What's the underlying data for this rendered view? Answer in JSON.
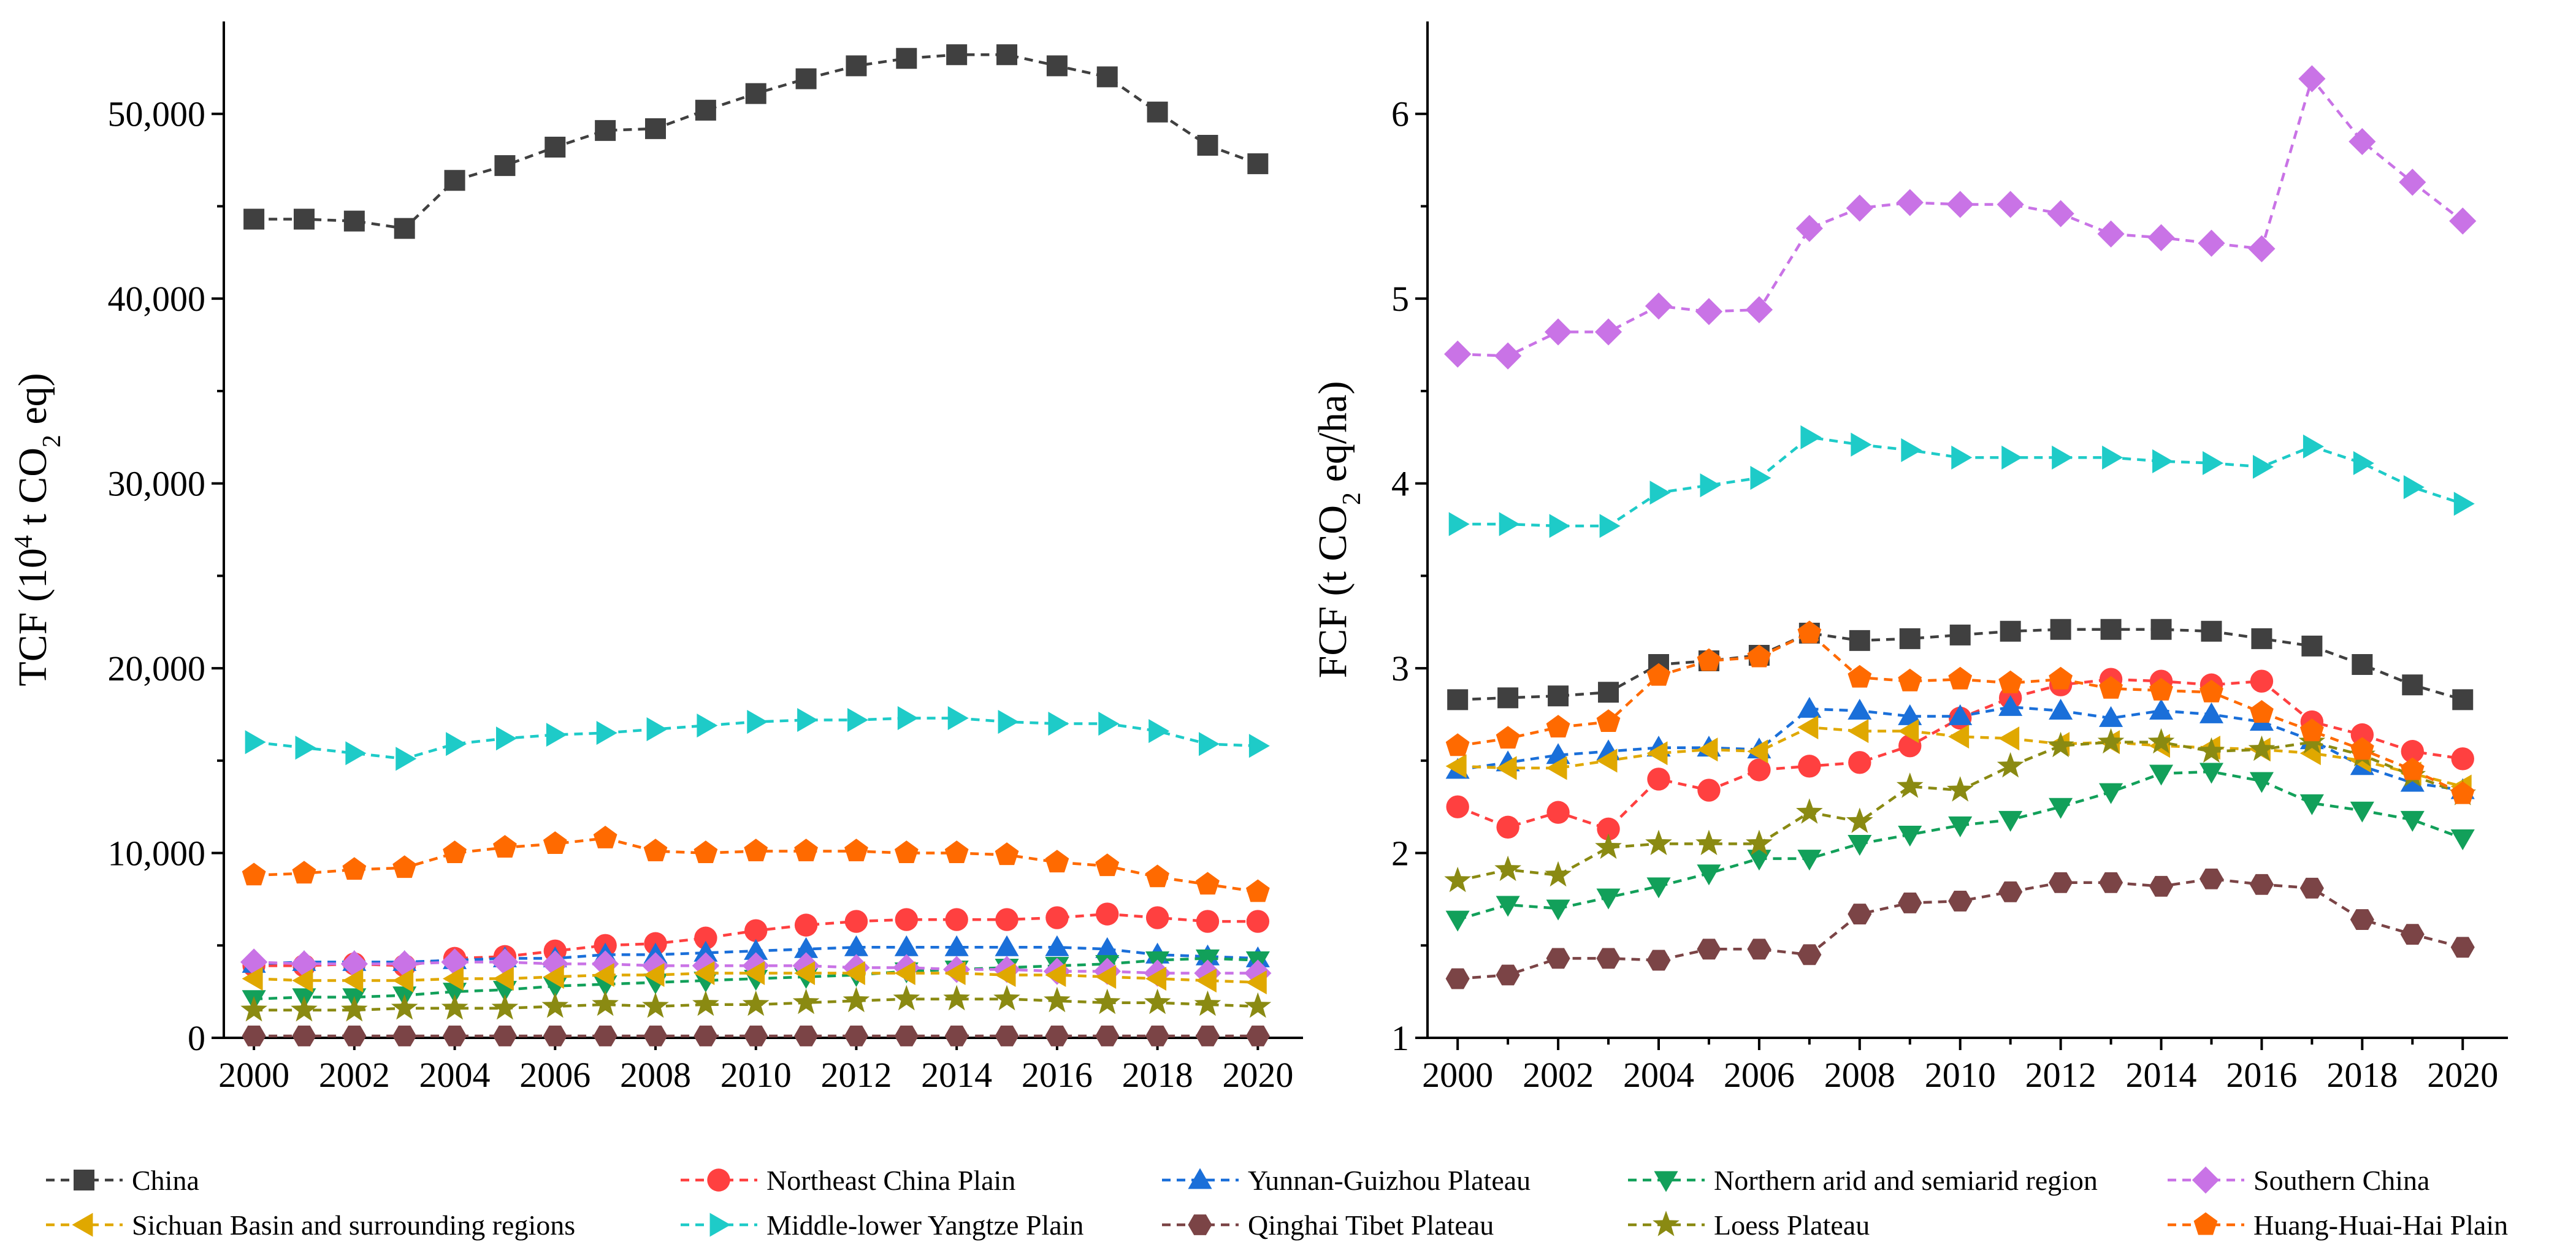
{
  "chart_data": [
    {
      "type": "line",
      "ylabel_main": "TCF (10",
      "ylabel_sup": "4",
      "ylabel_mid": " t CO",
      "ylabel_sub": "2",
      "ylabel_end": " eq)",
      "xlim": [
        1999.4,
        2020.9
      ],
      "ylim": [
        0,
        55000
      ],
      "xticks": [
        2000,
        2002,
        2004,
        2006,
        2008,
        2010,
        2012,
        2014,
        2016,
        2018,
        2020
      ],
      "xtick_labels": [
        "2000",
        "2002",
        "2004",
        "2006",
        "2008",
        "2010",
        "2012",
        "2014",
        "2016",
        "2018",
        "2020"
      ],
      "yticks": [
        0,
        10000,
        20000,
        30000,
        40000,
        50000
      ],
      "ytick_labels": [
        "0",
        "10,000",
        "20,000",
        "30,000",
        "40,000",
        "50,000"
      ],
      "x": [
        2000,
        2001,
        2002,
        2003,
        2004,
        2005,
        2006,
        2007,
        2008,
        2009,
        2010,
        2011,
        2012,
        2013,
        2014,
        2015,
        2016,
        2017,
        2018,
        2019,
        2020
      ],
      "series": [
        {
          "key": "china",
          "values": [
            44300,
            44300,
            44200,
            43800,
            46400,
            47200,
            48200,
            49100,
            49200,
            50200,
            51100,
            51900,
            52600,
            53000,
            53200,
            53200,
            52600,
            52000,
            50100,
            48300,
            47300
          ]
        },
        {
          "key": "northeast",
          "values": [
            3900,
            3900,
            4000,
            3900,
            4300,
            4400,
            4700,
            5000,
            5100,
            5400,
            5800,
            6100,
            6300,
            6400,
            6400,
            6400,
            6500,
            6700,
            6500,
            6300,
            6300
          ]
        },
        {
          "key": "yunnan",
          "values": [
            4000,
            4100,
            4100,
            4100,
            4200,
            4300,
            4300,
            4500,
            4500,
            4600,
            4700,
            4800,
            4900,
            4900,
            4900,
            4900,
            4900,
            4800,
            4500,
            4400,
            4300
          ]
        },
        {
          "key": "northern",
          "values": [
            2100,
            2200,
            2200,
            2300,
            2500,
            2600,
            2800,
            2900,
            3000,
            3100,
            3200,
            3300,
            3400,
            3600,
            3700,
            3800,
            3900,
            4000,
            4200,
            4300,
            4200
          ]
        },
        {
          "key": "southern",
          "values": [
            4100,
            4000,
            4000,
            4000,
            4100,
            4100,
            4000,
            4000,
            3900,
            3900,
            3900,
            3900,
            3800,
            3800,
            3700,
            3700,
            3600,
            3600,
            3500,
            3500,
            3500
          ]
        },
        {
          "key": "sichuan",
          "values": [
            3200,
            3100,
            3100,
            3100,
            3200,
            3200,
            3300,
            3400,
            3400,
            3500,
            3500,
            3500,
            3500,
            3500,
            3500,
            3400,
            3400,
            3300,
            3200,
            3100,
            3000
          ]
        },
        {
          "key": "yangtze",
          "values": [
            16000,
            15700,
            15400,
            15100,
            15900,
            16200,
            16400,
            16500,
            16700,
            16900,
            17100,
            17200,
            17200,
            17300,
            17300,
            17100,
            17000,
            17000,
            16600,
            15900,
            15800
          ]
        },
        {
          "key": "qinghai",
          "values": [
            100,
            100,
            100,
            100,
            100,
            100,
            100,
            100,
            100,
            100,
            100,
            100,
            100,
            100,
            100,
            100,
            100,
            100,
            100,
            100,
            100
          ]
        },
        {
          "key": "loess",
          "values": [
            1500,
            1500,
            1500,
            1600,
            1600,
            1600,
            1700,
            1800,
            1700,
            1800,
            1800,
            1900,
            2000,
            2100,
            2100,
            2100,
            2000,
            1900,
            1900,
            1800,
            1700
          ]
        },
        {
          "key": "huang",
          "values": [
            8800,
            8900,
            9100,
            9200,
            10000,
            10300,
            10500,
            10800,
            10100,
            10000,
            10100,
            10100,
            10100,
            10000,
            10000,
            9900,
            9500,
            9300,
            8700,
            8300,
            7900
          ]
        }
      ]
    },
    {
      "type": "line",
      "ylabel_main": "FCF (t CO",
      "ylabel_sub": "2",
      "ylabel_end": " eq/ha)",
      "xlim": [
        1999.4,
        2020.9
      ],
      "ylim": [
        1,
        6.5
      ],
      "xticks": [
        2000,
        2002,
        2004,
        2006,
        2008,
        2010,
        2012,
        2014,
        2016,
        2018,
        2020
      ],
      "xtick_labels": [
        "2000",
        "2002",
        "2004",
        "2006",
        "2008",
        "2010",
        "2012",
        "2014",
        "2016",
        "2018",
        "2020"
      ],
      "yticks": [
        1,
        2,
        3,
        4,
        5,
        6
      ],
      "ytick_labels": [
        "1",
        "2",
        "3",
        "4",
        "5",
        "6"
      ],
      "x": [
        2000,
        2001,
        2002,
        2003,
        2004,
        2005,
        2006,
        2007,
        2008,
        2009,
        2010,
        2011,
        2012,
        2013,
        2014,
        2015,
        2016,
        2017,
        2018,
        2019,
        2020
      ],
      "series": [
        {
          "key": "china",
          "values": [
            2.83,
            2.84,
            2.85,
            2.87,
            3.02,
            3.04,
            3.07,
            3.19,
            3.15,
            3.16,
            3.18,
            3.2,
            3.21,
            3.21,
            3.21,
            3.2,
            3.16,
            3.12,
            3.02,
            2.91,
            2.83
          ]
        },
        {
          "key": "northeast",
          "values": [
            2.25,
            2.14,
            2.22,
            2.13,
            2.4,
            2.34,
            2.45,
            2.47,
            2.49,
            2.58,
            2.73,
            2.84,
            2.91,
            2.94,
            2.93,
            2.91,
            2.93,
            2.71,
            2.64,
            2.55,
            2.51
          ]
        },
        {
          "key": "yunnan",
          "values": [
            2.45,
            2.49,
            2.53,
            2.55,
            2.57,
            2.57,
            2.56,
            2.78,
            2.77,
            2.74,
            2.74,
            2.79,
            2.77,
            2.73,
            2.77,
            2.75,
            2.71,
            2.61,
            2.47,
            2.38,
            2.34
          ]
        },
        {
          "key": "northern",
          "values": [
            1.64,
            1.72,
            1.7,
            1.76,
            1.82,
            1.89,
            1.97,
            1.97,
            2.05,
            2.1,
            2.15,
            2.18,
            2.25,
            2.33,
            2.43,
            2.44,
            2.39,
            2.27,
            2.23,
            2.18,
            2.08
          ]
        },
        {
          "key": "southern",
          "values": [
            4.7,
            4.69,
            4.82,
            4.82,
            4.96,
            4.93,
            4.94,
            5.38,
            5.49,
            5.52,
            5.51,
            5.51,
            5.46,
            5.35,
            5.33,
            5.3,
            5.27,
            6.19,
            5.85,
            5.63,
            5.42
          ]
        },
        {
          "key": "sichuan",
          "values": [
            2.47,
            2.46,
            2.46,
            2.5,
            2.54,
            2.56,
            2.55,
            2.68,
            2.66,
            2.66,
            2.63,
            2.62,
            2.59,
            2.6,
            2.58,
            2.57,
            2.56,
            2.54,
            2.5,
            2.43,
            2.36
          ]
        },
        {
          "key": "yangtze",
          "values": [
            3.78,
            3.78,
            3.77,
            3.77,
            3.95,
            3.99,
            4.03,
            4.25,
            4.21,
            4.18,
            4.14,
            4.14,
            4.14,
            4.14,
            4.12,
            4.11,
            4.09,
            4.2,
            4.11,
            3.98,
            3.89
          ]
        },
        {
          "key": "qinghai",
          "values": [
            1.32,
            1.34,
            1.43,
            1.43,
            1.42,
            1.48,
            1.48,
            1.45,
            1.67,
            1.73,
            1.74,
            1.79,
            1.84,
            1.84,
            1.82,
            1.86,
            1.83,
            1.81,
            1.64,
            1.56,
            1.49
          ]
        },
        {
          "key": "loess",
          "values": [
            1.85,
            1.91,
            1.88,
            2.03,
            2.05,
            2.05,
            2.05,
            2.22,
            2.17,
            2.36,
            2.34,
            2.47,
            2.58,
            2.6,
            2.6,
            2.55,
            2.56,
            2.6,
            2.53,
            2.42,
            2.32
          ]
        },
        {
          "key": "huang",
          "values": [
            2.58,
            2.62,
            2.68,
            2.71,
            2.96,
            3.04,
            3.06,
            3.19,
            2.95,
            2.93,
            2.94,
            2.92,
            2.94,
            2.89,
            2.88,
            2.87,
            2.76,
            2.66,
            2.56,
            2.45,
            2.32
          ]
        }
      ]
    }
  ],
  "legend": [
    {
      "key": "china",
      "label": "China",
      "color": "#404040",
      "marker": "square"
    },
    {
      "key": "northeast",
      "label": "Northeast China Plain",
      "color": "#ff4040",
      "marker": "circle"
    },
    {
      "key": "yunnan",
      "label": "Yunnan-Guizhou Plateau",
      "color": "#1a6fd9",
      "marker": "triangle-up"
    },
    {
      "key": "northern",
      "label": "Northern arid and semiarid region",
      "color": "#12a05a",
      "marker": "triangle-down"
    },
    {
      "key": "southern",
      "label": "Southern China",
      "color": "#c973e6",
      "marker": "diamond"
    },
    {
      "key": "sichuan",
      "label": "Sichuan Basin and surrounding regions",
      "color": "#e0a800",
      "marker": "triangle-left"
    },
    {
      "key": "yangtze",
      "label": "Middle-lower Yangtze Plain",
      "color": "#1ecbc8",
      "marker": "triangle-right"
    },
    {
      "key": "qinghai",
      "label": "Qinghai Tibet Plateau",
      "color": "#7b4446",
      "marker": "hexagon"
    },
    {
      "key": "loess",
      "label": "Loess Plateau",
      "color": "#8a8a12",
      "marker": "star"
    },
    {
      "key": "huang",
      "label": "Huang-Huai-Hai Plain",
      "color": "#ff6a00",
      "marker": "pentagon"
    }
  ]
}
